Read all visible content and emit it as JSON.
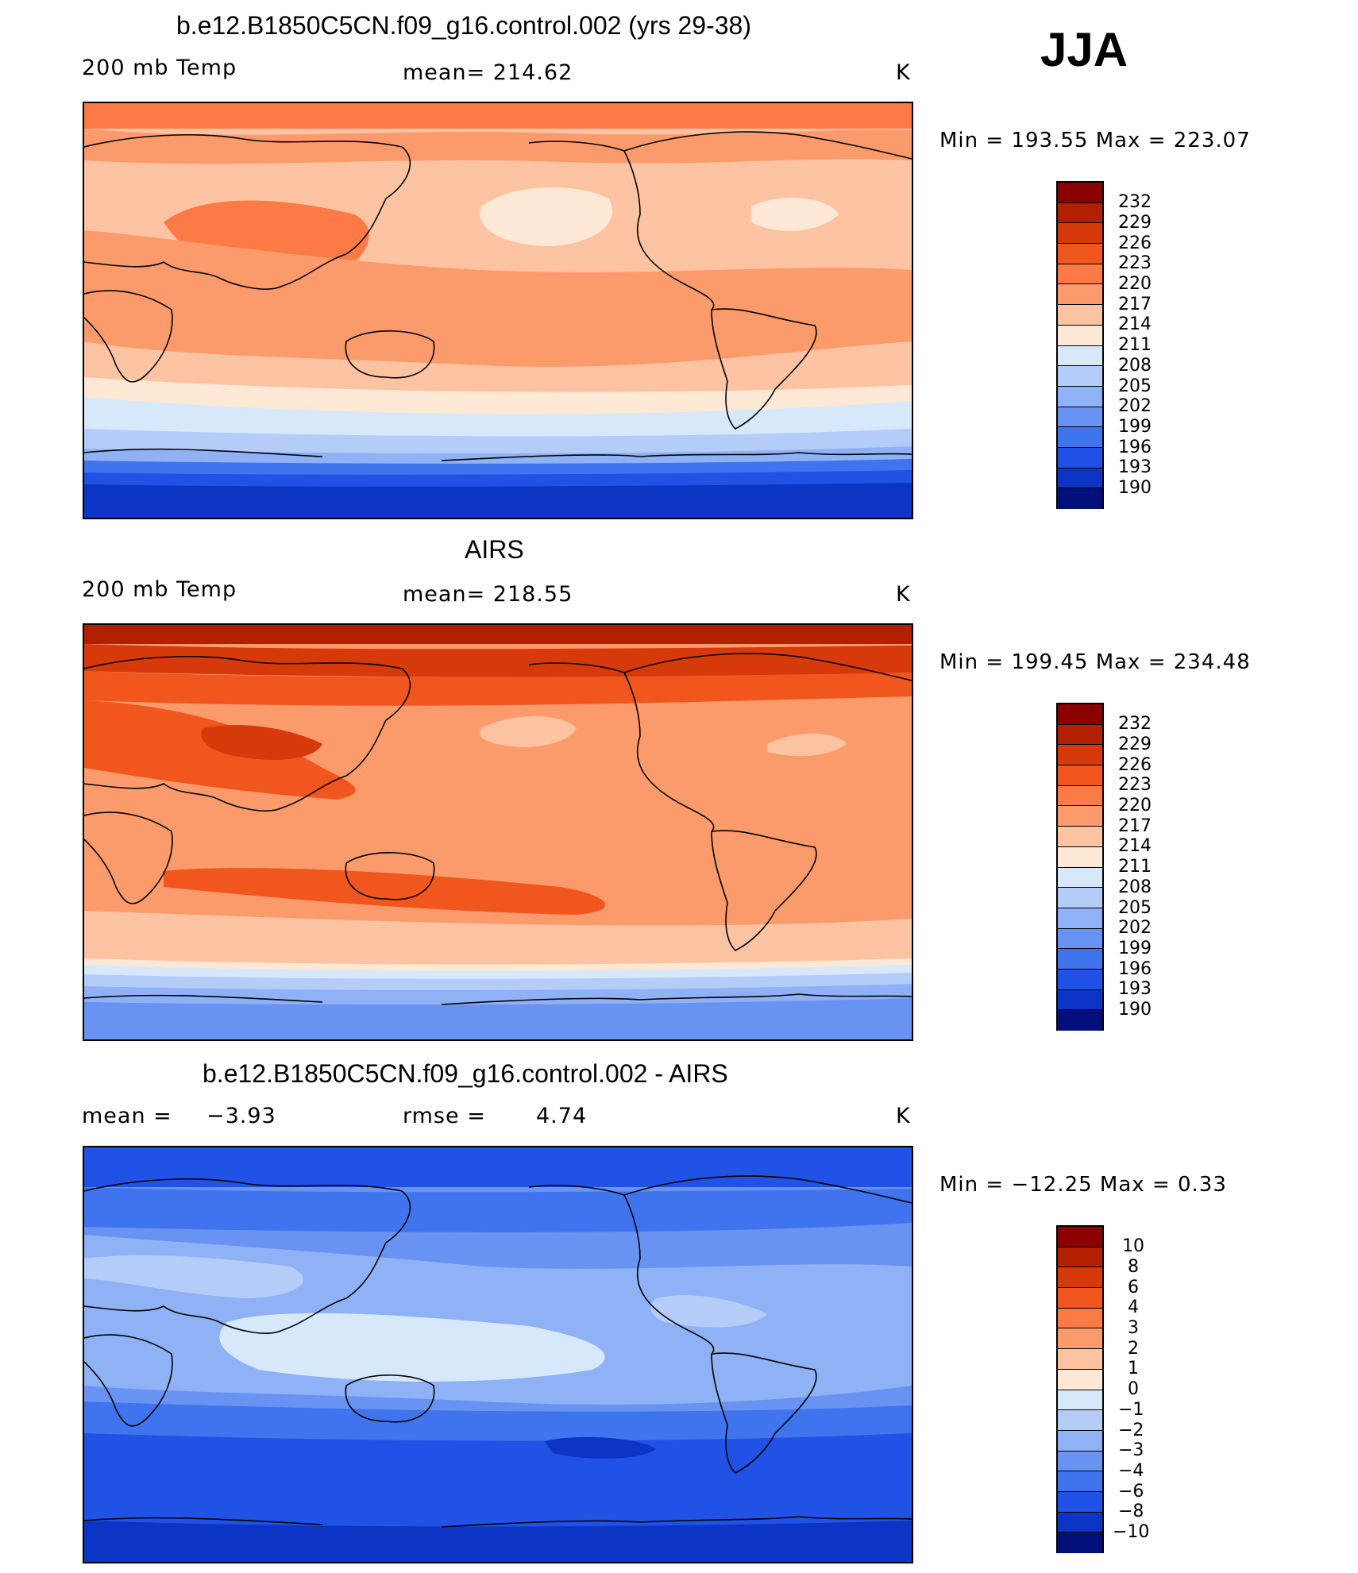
{
  "season": "JJA",
  "panels": [
    {
      "title": "b.e12.B1850C5CN.f09_g16.control.002 (yrs 29-38)",
      "left_label": "200 mb Temp",
      "center_label": "mean=  214.62",
      "right_label": "K",
      "minmax": "Min  =  193.55  Max  =  223.07",
      "colorbar_labels": [
        "232",
        "229",
        "226",
        "223",
        "220",
        "217",
        "214",
        "211",
        "208",
        "205",
        "202",
        "199",
        "196",
        "193",
        "190"
      ]
    },
    {
      "title": "AIRS",
      "left_label": "200 mb Temp",
      "center_label": "mean=  218.55",
      "right_label": "K",
      "minmax": "Min  =  199.45  Max  =  234.48",
      "colorbar_labels": [
        "232",
        "229",
        "226",
        "223",
        "220",
        "217",
        "214",
        "211",
        "208",
        "205",
        "202",
        "199",
        "196",
        "193",
        "190"
      ]
    },
    {
      "title": "b.e12.B1850C5CN.f09_g16.control.002 - AIRS",
      "left_label": "mean  =",
      "left_value": "−3.93",
      "center_label": "rmse  =",
      "center_value": "4.74",
      "right_label": "K",
      "minmax": "Min  =  −12.25  Max  =     0.33",
      "colorbar_labels": [
        "10",
        "8",
        "6",
        "4",
        "3",
        "2",
        "1",
        "0",
        "−1",
        "−2",
        "−3",
        "−4",
        "−6",
        "−8",
        "−10"
      ]
    }
  ],
  "colormap": [
    "#8b0000",
    "#b22000",
    "#d63a0a",
    "#f0561e",
    "#fb7a45",
    "#fb9a6a",
    "#fcc3a3",
    "#fde8d6",
    "#d7e8fb",
    "#b4cdf8",
    "#8fb1f5",
    "#6993f2",
    "#4074ef",
    "#1f52e5",
    "#0d35c5",
    "#02209c",
    "#000f7a"
  ]
}
